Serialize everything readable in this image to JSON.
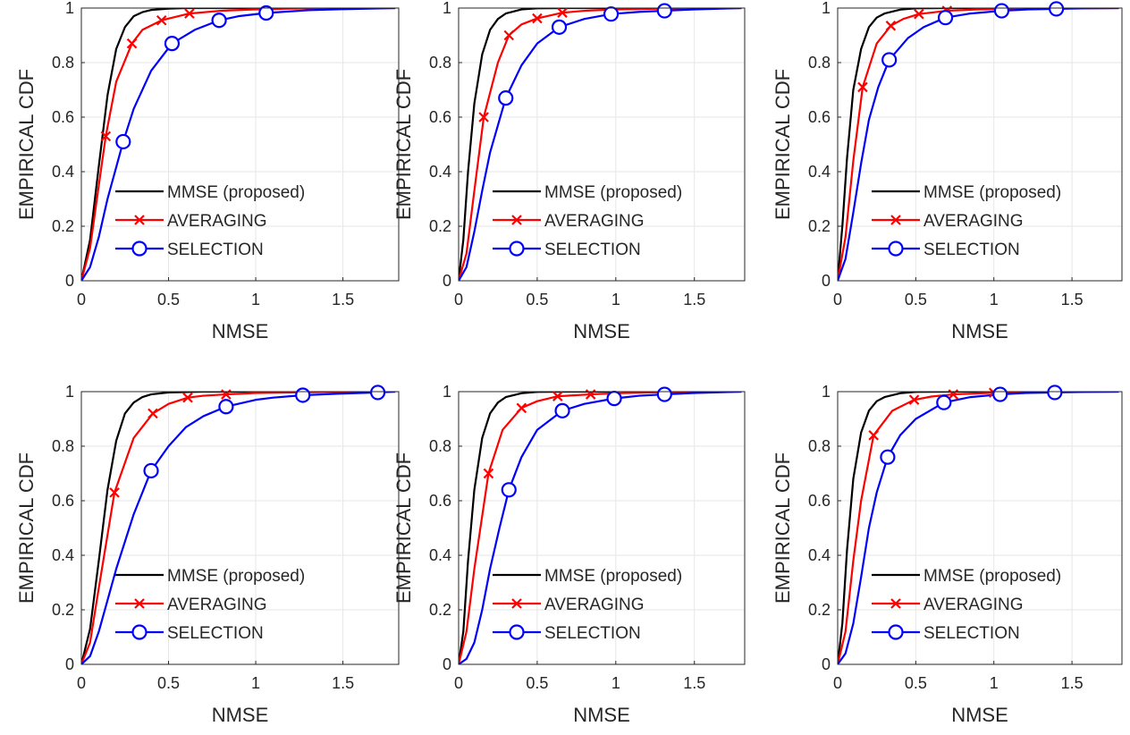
{
  "chart_data": [
    {
      "type": "line",
      "xlabel": "NMSE",
      "ylabel": "EMPIRICAL CDF",
      "xlim": [
        0,
        1.8
      ],
      "ylim": [
        0,
        1
      ],
      "xticks": [
        "0",
        "0.5",
        "1",
        "1.5"
      ],
      "yticks": [
        "0",
        "0.2",
        "0.4",
        "0.6",
        "0.8",
        "1"
      ],
      "grid": true,
      "legend_position": "lower-right",
      "series": [
        {
          "name": "MMSE (proposed)",
          "color": "#000000",
          "marker": "none",
          "x": [
            0,
            0.05,
            0.1,
            0.15,
            0.2,
            0.25,
            0.3,
            0.35,
            0.4,
            0.5,
            0.6,
            0.8,
            1.0
          ],
          "y": [
            0,
            0.15,
            0.42,
            0.68,
            0.85,
            0.93,
            0.97,
            0.985,
            0.993,
            0.998,
            1,
            1,
            1
          ]
        },
        {
          "name": "AVERAGING",
          "color": "#ff0000",
          "marker": "x",
          "x": [
            0,
            0.05,
            0.1,
            0.14,
            0.2,
            0.29,
            0.35,
            0.46,
            0.62,
            0.8,
            1.0,
            1.2,
            1.5,
            1.8
          ],
          "y": [
            0,
            0.12,
            0.35,
            0.53,
            0.73,
            0.87,
            0.92,
            0.955,
            0.98,
            0.99,
            0.995,
            0.998,
            1,
            1
          ],
          "marker_x": [
            0.14,
            0.29,
            0.46,
            0.62
          ]
        },
        {
          "name": "SELECTION",
          "color": "#0000ff",
          "marker": "o",
          "x": [
            0,
            0.05,
            0.1,
            0.15,
            0.24,
            0.3,
            0.4,
            0.52,
            0.65,
            0.79,
            0.9,
            1.06,
            1.3,
            1.5,
            1.8
          ],
          "y": [
            0,
            0.05,
            0.16,
            0.3,
            0.51,
            0.63,
            0.77,
            0.87,
            0.92,
            0.955,
            0.97,
            0.982,
            0.992,
            0.996,
            1
          ],
          "marker_x": [
            0.24,
            0.52,
            0.79,
            1.06
          ]
        }
      ]
    },
    {
      "type": "line",
      "xlabel": "NMSE",
      "ylabel": "EMPIRICAL CDF",
      "xlim": [
        0,
        1.8
      ],
      "ylim": [
        0,
        1
      ],
      "xticks": [
        "0",
        "0.5",
        "1",
        "1.5"
      ],
      "yticks": [
        "0",
        "0.2",
        "0.4",
        "0.6",
        "0.8",
        "1"
      ],
      "grid": true,
      "legend_position": "lower-right",
      "series": [
        {
          "name": "MMSE (proposed)",
          "color": "#000000",
          "marker": "none",
          "x": [
            0,
            0.03,
            0.06,
            0.1,
            0.15,
            0.2,
            0.25,
            0.3,
            0.4,
            0.5,
            0.7,
            1.0
          ],
          "y": [
            0,
            0.15,
            0.4,
            0.65,
            0.83,
            0.92,
            0.96,
            0.98,
            0.995,
            0.999,
            1,
            1
          ]
        },
        {
          "name": "AVERAGING",
          "color": "#ff0000",
          "marker": "x",
          "x": [
            0,
            0.05,
            0.1,
            0.16,
            0.25,
            0.32,
            0.4,
            0.5,
            0.66,
            0.8,
            1.0,
            1.3,
            1.8
          ],
          "y": [
            0,
            0.1,
            0.33,
            0.6,
            0.8,
            0.9,
            0.94,
            0.962,
            0.983,
            0.99,
            0.995,
            0.998,
            1
          ],
          "marker_x": [
            0.16,
            0.32,
            0.5,
            0.66
          ]
        },
        {
          "name": "SELECTION",
          "color": "#0000ff",
          "marker": "o",
          "x": [
            0,
            0.05,
            0.1,
            0.15,
            0.2,
            0.3,
            0.4,
            0.5,
            0.64,
            0.8,
            0.97,
            1.15,
            1.31,
            1.5,
            1.8
          ],
          "y": [
            0,
            0.05,
            0.18,
            0.33,
            0.47,
            0.67,
            0.79,
            0.87,
            0.93,
            0.96,
            0.978,
            0.986,
            0.99,
            0.995,
            1
          ],
          "marker_x": [
            0.3,
            0.64,
            0.97,
            1.31
          ]
        }
      ]
    },
    {
      "type": "line",
      "xlabel": "NMSE",
      "ylabel": "EMPIRICAL CDF",
      "xlim": [
        0,
        1.8
      ],
      "ylim": [
        0,
        1
      ],
      "xticks": [
        "0",
        "0.5",
        "1",
        "1.5"
      ],
      "yticks": [
        "0",
        "0.2",
        "0.4",
        "0.6",
        "0.8",
        "1"
      ],
      "grid": true,
      "legend_position": "lower-right",
      "series": [
        {
          "name": "MMSE (proposed)",
          "color": "#000000",
          "marker": "none",
          "x": [
            0,
            0.03,
            0.06,
            0.1,
            0.15,
            0.2,
            0.25,
            0.3,
            0.4,
            0.5,
            0.7,
            1.0
          ],
          "y": [
            0,
            0.2,
            0.45,
            0.7,
            0.85,
            0.93,
            0.965,
            0.98,
            0.994,
            0.999,
            1,
            1
          ]
        },
        {
          "name": "AVERAGING",
          "color": "#ff0000",
          "marker": "x",
          "x": [
            0,
            0.05,
            0.1,
            0.16,
            0.25,
            0.34,
            0.42,
            0.52,
            0.7,
            0.9,
            1.2,
            1.8
          ],
          "y": [
            0,
            0.16,
            0.44,
            0.71,
            0.87,
            0.935,
            0.96,
            0.978,
            0.99,
            0.995,
            0.998,
            1
          ],
          "marker_x": [
            0.16,
            0.34,
            0.52,
            0.7
          ]
        },
        {
          "name": "SELECTION",
          "color": "#0000ff",
          "marker": "o",
          "x": [
            0,
            0.05,
            0.1,
            0.15,
            0.2,
            0.26,
            0.33,
            0.45,
            0.55,
            0.69,
            0.85,
            1.05,
            1.22,
            1.4,
            1.6,
            1.8
          ],
          "y": [
            0,
            0.08,
            0.25,
            0.43,
            0.59,
            0.71,
            0.81,
            0.89,
            0.93,
            0.965,
            0.98,
            0.99,
            0.995,
            0.997,
            0.999,
            1
          ],
          "marker_x": [
            0.33,
            0.69,
            1.05,
            1.4
          ]
        }
      ]
    },
    {
      "type": "line",
      "xlabel": "NMSE",
      "ylabel": "EMPIRICAL CDF",
      "xlim": [
        0,
        1.8
      ],
      "ylim": [
        0,
        1
      ],
      "xticks": [
        "0",
        "0.5",
        "1",
        "1.5"
      ],
      "yticks": [
        "0",
        "0.2",
        "0.4",
        "0.6",
        "0.8",
        "1"
      ],
      "grid": true,
      "legend_position": "lower-right",
      "series": [
        {
          "name": "MMSE (proposed)",
          "color": "#000000",
          "marker": "none",
          "x": [
            0,
            0.05,
            0.1,
            0.15,
            0.2,
            0.25,
            0.3,
            0.35,
            0.4,
            0.5,
            0.7,
            1.0
          ],
          "y": [
            0,
            0.13,
            0.38,
            0.64,
            0.82,
            0.92,
            0.96,
            0.98,
            0.99,
            0.997,
            1,
            1
          ]
        },
        {
          "name": "AVERAGING",
          "color": "#ff0000",
          "marker": "x",
          "x": [
            0,
            0.05,
            0.1,
            0.19,
            0.3,
            0.41,
            0.5,
            0.61,
            0.7,
            0.83,
            1.0,
            1.3,
            1.8
          ],
          "y": [
            0,
            0.08,
            0.28,
            0.63,
            0.83,
            0.92,
            0.955,
            0.978,
            0.985,
            0.99,
            0.995,
            0.998,
            1
          ],
          "marker_x": [
            0.19,
            0.41,
            0.61,
            0.83
          ]
        },
        {
          "name": "SELECTION",
          "color": "#0000ff",
          "marker": "o",
          "x": [
            0,
            0.05,
            0.1,
            0.2,
            0.3,
            0.4,
            0.5,
            0.6,
            0.7,
            0.83,
            1.0,
            1.1,
            1.27,
            1.5,
            1.7,
            1.8
          ],
          "y": [
            0,
            0.03,
            0.12,
            0.35,
            0.55,
            0.71,
            0.8,
            0.87,
            0.91,
            0.945,
            0.97,
            0.978,
            0.987,
            0.993,
            0.997,
            1
          ],
          "marker_x": [
            0.4,
            0.83,
            1.27,
            1.7
          ]
        }
      ]
    },
    {
      "type": "line",
      "xlabel": "NMSE",
      "ylabel": "EMPIRICAL CDF",
      "xlim": [
        0,
        1.8
      ],
      "ylim": [
        0,
        1
      ],
      "xticks": [
        "0",
        "0.5",
        "1",
        "1.5"
      ],
      "yticks": [
        "0",
        "0.2",
        "0.4",
        "0.6",
        "0.8",
        "1"
      ],
      "grid": true,
      "legend_position": "lower-right",
      "series": [
        {
          "name": "MMSE (proposed)",
          "color": "#000000",
          "marker": "none",
          "x": [
            0,
            0.03,
            0.06,
            0.1,
            0.15,
            0.2,
            0.25,
            0.3,
            0.4,
            0.5,
            0.7,
            1.0
          ],
          "y": [
            0,
            0.12,
            0.38,
            0.64,
            0.83,
            0.92,
            0.96,
            0.98,
            0.994,
            0.999,
            1,
            1
          ]
        },
        {
          "name": "AVERAGING",
          "color": "#ff0000",
          "marker": "x",
          "x": [
            0,
            0.05,
            0.1,
            0.19,
            0.28,
            0.4,
            0.5,
            0.63,
            0.84,
            1.0,
            1.3,
            1.8
          ],
          "y": [
            0,
            0.12,
            0.35,
            0.7,
            0.86,
            0.94,
            0.965,
            0.983,
            0.99,
            0.994,
            0.998,
            1
          ],
          "marker_x": [
            0.19,
            0.4,
            0.63,
            0.84
          ]
        },
        {
          "name": "SELECTION",
          "color": "#0000ff",
          "marker": "o",
          "x": [
            0,
            0.05,
            0.1,
            0.15,
            0.2,
            0.26,
            0.32,
            0.4,
            0.5,
            0.66,
            0.8,
            0.99,
            1.15,
            1.31,
            1.5,
            1.8
          ],
          "y": [
            0,
            0.02,
            0.08,
            0.2,
            0.35,
            0.5,
            0.64,
            0.76,
            0.86,
            0.93,
            0.955,
            0.975,
            0.985,
            0.99,
            0.995,
            1
          ],
          "marker_x": [
            0.32,
            0.66,
            0.99,
            1.31
          ]
        }
      ]
    },
    {
      "type": "line",
      "xlabel": "NMSE",
      "ylabel": "EMPIRICAL CDF",
      "xlim": [
        0,
        1.8
      ],
      "ylim": [
        0,
        1
      ],
      "xticks": [
        "0",
        "0.5",
        "1",
        "1.5"
      ],
      "yticks": [
        "0",
        "0.2",
        "0.4",
        "0.6",
        "0.8",
        "1"
      ],
      "grid": true,
      "legend_position": "lower-right",
      "series": [
        {
          "name": "MMSE (proposed)",
          "color": "#000000",
          "marker": "none",
          "x": [
            0,
            0.03,
            0.06,
            0.1,
            0.15,
            0.2,
            0.25,
            0.3,
            0.4,
            0.5,
            0.7,
            1.0
          ],
          "y": [
            0,
            0.15,
            0.42,
            0.68,
            0.85,
            0.93,
            0.965,
            0.98,
            0.994,
            0.999,
            1,
            1
          ]
        },
        {
          "name": "AVERAGING",
          "color": "#ff0000",
          "marker": "x",
          "x": [
            0,
            0.05,
            0.1,
            0.15,
            0.23,
            0.35,
            0.49,
            0.6,
            0.74,
            1.0,
            1.2,
            1.8
          ],
          "y": [
            0,
            0.12,
            0.38,
            0.6,
            0.84,
            0.93,
            0.97,
            0.982,
            0.99,
            0.996,
            0.998,
            1
          ],
          "marker_x": [
            0.23,
            0.49,
            0.74,
            1.0
          ]
        },
        {
          "name": "SELECTION",
          "color": "#0000ff",
          "marker": "o",
          "x": [
            0,
            0.05,
            0.1,
            0.15,
            0.2,
            0.25,
            0.32,
            0.4,
            0.5,
            0.68,
            0.85,
            1.04,
            1.2,
            1.39,
            1.6,
            1.8
          ],
          "y": [
            0,
            0.04,
            0.15,
            0.32,
            0.5,
            0.63,
            0.76,
            0.84,
            0.9,
            0.96,
            0.98,
            0.99,
            0.995,
            0.997,
            0.999,
            1
          ],
          "marker_x": [
            0.32,
            0.68,
            1.04,
            1.39
          ]
        }
      ]
    }
  ]
}
